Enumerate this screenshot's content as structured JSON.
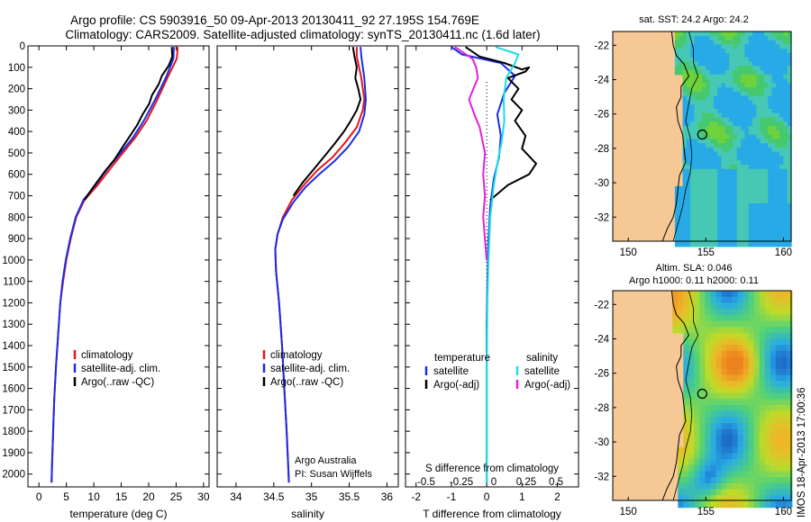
{
  "header": {
    "line1": "Argo profile: CS 5903916_50 09-Apr-2013 20130411_92 27.195S 154.769E",
    "line2": "Climatology: CARS2009. Satellite-adjusted climatology: synTS_20130411.nc (1.6d later)"
  },
  "depth_ticks": [
    "0",
    "100",
    "200",
    "300",
    "400",
    "500",
    "600",
    "700",
    "800",
    "900",
    "1000",
    "1100",
    "1200",
    "1300",
    "1400",
    "1500",
    "1600",
    "1700",
    "1800",
    "1900",
    "2000"
  ],
  "colors": {
    "climatology": "#e8141b",
    "satellite": "#1a2de6",
    "argo": "#000000",
    "salinity_sat": "#19dde6",
    "salinity_argo": "#e022dc"
  },
  "chart_data": [
    {
      "type": "line",
      "panel": "temperature",
      "xlabel": "temperature (deg C)",
      "xlim": [
        -2,
        31
      ],
      "ylim": [
        2060,
        0
      ],
      "x_ticks": [
        "0",
        "5",
        "10",
        "15",
        "20",
        "25",
        "30"
      ],
      "legend": [
        "climatology",
        "satellite-adj. clim.",
        "Argo(..raw -QC)"
      ],
      "series": [
        {
          "name": "climatology",
          "color": "#e8141b",
          "points": [
            [
              25.3,
              5
            ],
            [
              25.1,
              60
            ],
            [
              23.4,
              150
            ],
            [
              21.6,
              250
            ],
            [
              19.6,
              350
            ],
            [
              17.5,
              430
            ],
            [
              15.3,
              500
            ],
            [
              13.1,
              570
            ],
            [
              10.7,
              650
            ],
            [
              8.3,
              720
            ],
            [
              6.8,
              800
            ],
            [
              5.8,
              900
            ],
            [
              5.0,
              1000
            ],
            [
              4.4,
              1100
            ],
            [
              3.9,
              1200
            ],
            [
              3.5,
              1350
            ],
            [
              3.1,
              1500
            ],
            [
              2.8,
              1650
            ],
            [
              2.6,
              1800
            ],
            [
              2.4,
              1950
            ],
            [
              2.3,
              2040
            ]
          ]
        },
        {
          "name": "satellite-adj. clim.",
          "color": "#1a2de6",
          "points": [
            [
              24.6,
              5
            ],
            [
              24.5,
              60
            ],
            [
              23.1,
              150
            ],
            [
              21.2,
              250
            ],
            [
              19.1,
              350
            ],
            [
              17.1,
              430
            ],
            [
              14.9,
              500
            ],
            [
              12.6,
              570
            ],
            [
              10.3,
              650
            ],
            [
              8.1,
              720
            ],
            [
              6.7,
              800
            ],
            [
              5.7,
              900
            ],
            [
              4.9,
              1000
            ],
            [
              4.3,
              1100
            ],
            [
              3.9,
              1200
            ],
            [
              3.5,
              1350
            ],
            [
              3.1,
              1500
            ],
            [
              2.8,
              1650
            ],
            [
              2.6,
              1800
            ],
            [
              2.4,
              1950
            ],
            [
              2.3,
              2040
            ]
          ]
        },
        {
          "name": "Argo(..raw -QC)",
          "color": "#000000",
          "points": [
            [
              24.2,
              5
            ],
            [
              24.3,
              50
            ],
            [
              23.7,
              90
            ],
            [
              22.4,
              140
            ],
            [
              21.8,
              180
            ],
            [
              20.6,
              230
            ],
            [
              20.1,
              270
            ],
            [
              18.9,
              320
            ],
            [
              17.9,
              370
            ],
            [
              16.6,
              420
            ],
            [
              15.3,
              470
            ],
            [
              13.8,
              530
            ],
            [
              11.9,
              590
            ],
            [
              9.9,
              660
            ],
            [
              8.3,
              720
            ]
          ]
        }
      ]
    },
    {
      "type": "line",
      "panel": "salinity",
      "xlabel": "salinity",
      "xlim": [
        33.75,
        36.15
      ],
      "ylim": [
        2060,
        0
      ],
      "x_ticks": [
        "34",
        "34.5",
        "35",
        "35.5",
        "36"
      ],
      "legend": [
        "climatology",
        "satellite-adj. clim.",
        "Argo(..raw -QC)"
      ],
      "annotation": [
        "Argo Australia",
        "PI: Susan Wijffels"
      ],
      "series": [
        {
          "name": "climatology",
          "color": "#e8141b",
          "points": [
            [
              35.6,
              5
            ],
            [
              35.6,
              50
            ],
            [
              35.66,
              150
            ],
            [
              35.7,
              250
            ],
            [
              35.68,
              300
            ],
            [
              35.6,
              380
            ],
            [
              35.45,
              450
            ],
            [
              35.28,
              520
            ],
            [
              35.08,
              580
            ],
            [
              34.9,
              650
            ],
            [
              34.74,
              720
            ],
            [
              34.62,
              800
            ],
            [
              34.55,
              880
            ],
            [
              34.52,
              950
            ],
            [
              34.53,
              1050
            ],
            [
              34.57,
              1200
            ],
            [
              34.61,
              1400
            ],
            [
              34.64,
              1600
            ],
            [
              34.67,
              1800
            ],
            [
              34.69,
              1950
            ],
            [
              34.7,
              2040
            ]
          ]
        },
        {
          "name": "satellite-adj. clim.",
          "color": "#1a2de6",
          "points": [
            [
              35.65,
              5
            ],
            [
              35.66,
              50
            ],
            [
              35.7,
              150
            ],
            [
              35.72,
              250
            ],
            [
              35.7,
              320
            ],
            [
              35.63,
              400
            ],
            [
              35.49,
              470
            ],
            [
              35.3,
              540
            ],
            [
              35.1,
              600
            ],
            [
              34.92,
              660
            ],
            [
              34.76,
              730
            ],
            [
              34.62,
              810
            ],
            [
              34.55,
              880
            ],
            [
              34.52,
              950
            ],
            [
              34.53,
              1050
            ],
            [
              34.57,
              1200
            ],
            [
              34.61,
              1400
            ],
            [
              34.64,
              1600
            ],
            [
              34.67,
              1800
            ],
            [
              34.69,
              1950
            ],
            [
              34.7,
              2040
            ]
          ]
        },
        {
          "name": "Argo(..raw -QC)",
          "color": "#000000",
          "points": [
            [
              35.55,
              5
            ],
            [
              35.57,
              50
            ],
            [
              35.6,
              100
            ],
            [
              35.58,
              150
            ],
            [
              35.62,
              200
            ],
            [
              35.65,
              250
            ],
            [
              35.6,
              300
            ],
            [
              35.52,
              350
            ],
            [
              35.43,
              400
            ],
            [
              35.3,
              460
            ],
            [
              35.16,
              520
            ],
            [
              35.02,
              580
            ],
            [
              34.88,
              640
            ],
            [
              34.76,
              700
            ]
          ]
        }
      ]
    },
    {
      "type": "line",
      "panel": "difference",
      "xlabel": "T difference from climatology",
      "xlabel_top": "S difference from climatology",
      "xlim": [
        -2.3,
        2.6
      ],
      "ylim": [
        2060,
        0
      ],
      "x_ticks": [
        "-2",
        "-1",
        "0",
        "1",
        "2"
      ],
      "x_ticks_s": [
        "-0.5",
        "-0.25",
        "0",
        "0.25",
        "0.5"
      ],
      "legend_titles": [
        "temperature",
        "salinity"
      ],
      "legend_left": [
        "satellite",
        "Argo(-adj)"
      ],
      "legend_right": [
        "satellite",
        "Argo(-adj)"
      ],
      "series": [
        {
          "name": "temperature satellite",
          "color": "#1a2de6",
          "points": [
            [
              -1.0,
              5
            ],
            [
              -0.7,
              40
            ],
            [
              0.4,
              80
            ],
            [
              0.8,
              140
            ],
            [
              0.5,
              220
            ],
            [
              0.3,
              320
            ],
            [
              0.4,
              420
            ],
            [
              0.35,
              520
            ],
            [
              0.2,
              620
            ],
            [
              0.1,
              750
            ],
            [
              0.05,
              900
            ],
            [
              0.02,
              1100
            ],
            [
              0.0,
              1300
            ],
            [
              0.0,
              1600
            ],
            [
              0.0,
              2040
            ]
          ]
        },
        {
          "name": "temperature Argo(-adj)",
          "color": "#000000",
          "points": [
            [
              -0.6,
              5
            ],
            [
              -0.2,
              50
            ],
            [
              0.5,
              80
            ],
            [
              1.0,
              110
            ],
            [
              1.2,
              100
            ],
            [
              1.1,
              120
            ],
            [
              0.6,
              150
            ],
            [
              0.9,
              200
            ],
            [
              0.7,
              250
            ],
            [
              1.0,
              300
            ],
            [
              0.8,
              350
            ],
            [
              1.1,
              420
            ],
            [
              1.0,
              480
            ],
            [
              1.4,
              550
            ],
            [
              1.2,
              600
            ],
            [
              0.6,
              650
            ],
            [
              0.1,
              720
            ]
          ]
        },
        {
          "name": "salinity satellite",
          "color": "#19dde6",
          "points": [
            [
              0.25,
              5
            ],
            [
              0.9,
              40
            ],
            [
              0.8,
              80
            ],
            [
              0.55,
              150
            ],
            [
              0.48,
              250
            ],
            [
              0.5,
              350
            ],
            [
              0.42,
              450
            ],
            [
              0.3,
              550
            ],
            [
              0.2,
              650
            ],
            [
              0.1,
              800
            ],
            [
              0.05,
              1000
            ],
            [
              0.02,
              1200
            ],
            [
              0.0,
              1500
            ],
            [
              0.0,
              2040
            ]
          ]
        },
        {
          "name": "salinity Argo(-adj)",
          "color": "#e022dc",
          "points": [
            [
              -0.9,
              5
            ],
            [
              -0.4,
              60
            ],
            [
              -0.3,
              100
            ],
            [
              -0.25,
              150
            ],
            [
              -0.5,
              250
            ],
            [
              -0.35,
              320
            ],
            [
              -0.2,
              380
            ],
            [
              -0.05,
              500
            ],
            [
              -0.1,
              600
            ],
            [
              -0.05,
              700
            ],
            [
              -0.1,
              800
            ],
            [
              0.0,
              1000
            ]
          ]
        }
      ]
    }
  ],
  "maps": [
    {
      "title": "sat. SST: 24.2  Argo: 24.2",
      "lon_ticks": [
        "150",
        "155",
        "160"
      ],
      "lat_ticks": [
        "-22",
        "-24",
        "-26",
        "-28",
        "-30",
        "-32"
      ]
    },
    {
      "title1": "Altim. SLA: 0.046",
      "title2": "Argo h1000: 0.11  h2000: 0.11",
      "lon_ticks": [
        "150",
        "155",
        "160"
      ],
      "lat_ticks": [
        "-22",
        "-24",
        "-26",
        "-28",
        "-30",
        "-32"
      ]
    }
  ],
  "side_label": "IMOS 18-Apr-2013 17:00:36"
}
